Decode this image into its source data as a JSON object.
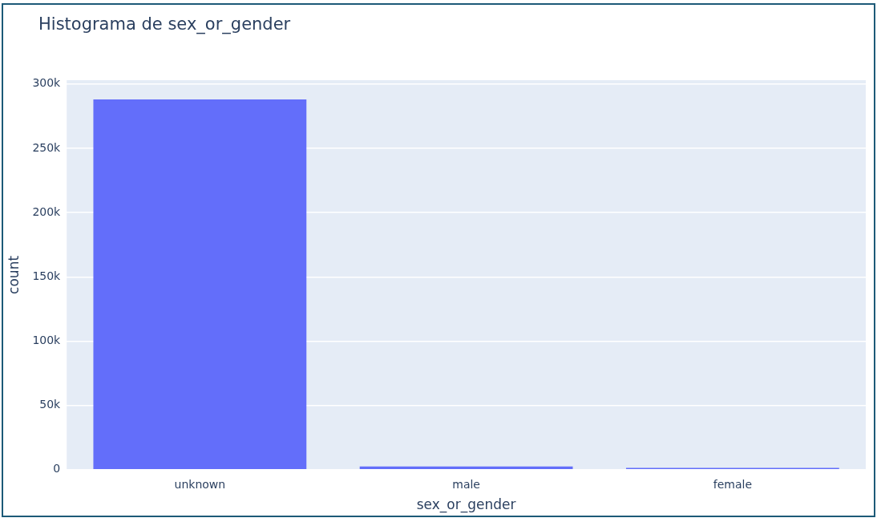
{
  "chart_data": {
    "type": "bar",
    "title": "Histograma de sex_or_gender",
    "xlabel": "sex_or_gender",
    "ylabel": "count",
    "categories": [
      "unknown",
      "male",
      "female"
    ],
    "values": [
      288000,
      2500,
      1500
    ],
    "color": "#636efa",
    "ylim": [
      0,
      303000
    ],
    "yticks": [
      {
        "value": 0,
        "label": "0"
      },
      {
        "value": 50000,
        "label": "50k"
      },
      {
        "value": 100000,
        "label": "100k"
      },
      {
        "value": 150000,
        "label": "150k"
      },
      {
        "value": 200000,
        "label": "200k"
      },
      {
        "value": 250000,
        "label": "250k"
      },
      {
        "value": 300000,
        "label": "300k"
      }
    ],
    "grid": "y",
    "legend": false
  }
}
